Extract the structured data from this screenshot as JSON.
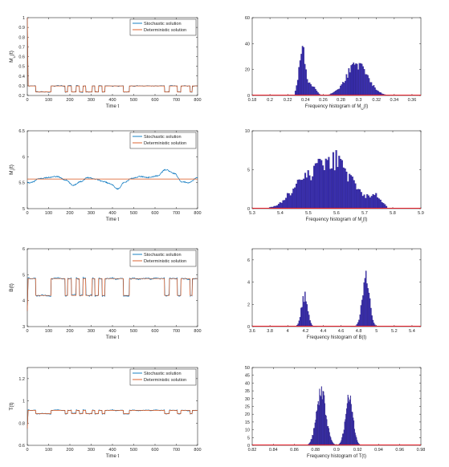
{
  "colors": {
    "stochastic": "#0072BD",
    "deterministic": "#D95319",
    "hist_fill": "#3A2FB0",
    "hist_edge": "#1A1066",
    "density": "#E8202A"
  },
  "chart_data": [
    {
      "id": "m2-time",
      "type": "line",
      "ylabel": "M_U(t)",
      "xlabel": "Time t",
      "xlim": [
        0,
        800
      ],
      "ylim": [
        0.2,
        1.0
      ],
      "xticks": [
        0,
        100,
        200,
        300,
        400,
        500,
        600,
        700,
        800
      ],
      "yticks": [
        0.2,
        0.3,
        0.4,
        0.5,
        0.6,
        0.7,
        0.8,
        0.9,
        1.0
      ],
      "ytick_labels": [
        "0.2",
        "0.3",
        "0.4",
        "0.5",
        "0.6",
        "0.7",
        "0.8",
        "0.9",
        "1"
      ],
      "legend": {
        "position": "top-right",
        "entries": [
          "Stochastic solution",
          "Deterministic solution"
        ]
      },
      "initial": 1.0,
      "levels": [
        0.236,
        0.298
      ],
      "noise": 0.004,
      "switches": [
        [
          0,
          1
        ],
        [
          40,
          0
        ],
        [
          112,
          1
        ],
        [
          178,
          0
        ],
        [
          190,
          1
        ],
        [
          208,
          0
        ],
        [
          230,
          1
        ],
        [
          245,
          0
        ],
        [
          262,
          1
        ],
        [
          275,
          0
        ],
        [
          305,
          1
        ],
        [
          318,
          0
        ],
        [
          335,
          1
        ],
        [
          352,
          0
        ],
        [
          365,
          1
        ],
        [
          452,
          0
        ],
        [
          480,
          1
        ],
        [
          645,
          0
        ],
        [
          668,
          1
        ],
        [
          705,
          0
        ],
        [
          722,
          1
        ],
        [
          765,
          0
        ],
        [
          775,
          1
        ],
        [
          800,
          1
        ]
      ],
      "series": [
        {
          "name": "Stochastic solution"
        },
        {
          "name": "Deterministic solution"
        }
      ]
    },
    {
      "id": "m2-hist",
      "type": "bar",
      "xlabel": "Frequency histogram of M_U(t)",
      "xlim": [
        0.18,
        0.37
      ],
      "ylim": [
        0,
        60
      ],
      "xticks": [
        0.18,
        0.2,
        0.22,
        0.24,
        0.26,
        0.28,
        0.3,
        0.32,
        0.34,
        0.36
      ],
      "xtick_labels": [
        "0.18",
        "0.2",
        "0.22",
        "0.24",
        "0.26",
        "0.28",
        "0.3",
        "0.32",
        "0.34",
        "0.36"
      ],
      "yticks": [
        0,
        20,
        40,
        60
      ],
      "range": [
        0.228,
        0.335
      ],
      "peaks": [
        [
          0.2365,
          0.0035,
          38
        ],
        [
          0.2475,
          0.004,
          8
        ],
        [
          0.298,
          0.012,
          24
        ]
      ],
      "spread": 0.35
    },
    {
      "id": "m1-time",
      "type": "line",
      "ylabel": "M_I(t)",
      "xlabel": "Time t",
      "xlim": [
        0,
        800
      ],
      "ylim": [
        5,
        6.5
      ],
      "xticks": [
        0,
        100,
        200,
        300,
        400,
        500,
        600,
        700,
        800
      ],
      "yticks": [
        5,
        5.5,
        6,
        6.5
      ],
      "ytick_labels": [
        "5",
        "5.5",
        "6",
        "6.5"
      ],
      "legend": {
        "position": "top-right",
        "entries": [
          "Stochastic solution",
          "Deterministic solution"
        ]
      },
      "det_value": 5.57,
      "anchors": [
        [
          0,
          5.5
        ],
        [
          15,
          5.5
        ],
        [
          60,
          5.58
        ],
        [
          100,
          5.6
        ],
        [
          140,
          5.62
        ],
        [
          180,
          5.55
        ],
        [
          215,
          5.45
        ],
        [
          250,
          5.52
        ],
        [
          285,
          5.6
        ],
        [
          320,
          5.57
        ],
        [
          360,
          5.52
        ],
        [
          390,
          5.48
        ],
        [
          425,
          5.38
        ],
        [
          455,
          5.5
        ],
        [
          490,
          5.58
        ],
        [
          530,
          5.62
        ],
        [
          570,
          5.6
        ],
        [
          610,
          5.63
        ],
        [
          650,
          5.75
        ],
        [
          690,
          5.68
        ],
        [
          725,
          5.52
        ],
        [
          760,
          5.5
        ],
        [
          800,
          5.6
        ]
      ],
      "series": [
        {
          "name": "Stochastic solution"
        },
        {
          "name": "Deterministic solution"
        }
      ]
    },
    {
      "id": "m1-hist",
      "type": "bar",
      "xlabel": "Frequency histogram of M_I(t)",
      "xlim": [
        5.3,
        5.9
      ],
      "ylim": [
        0,
        10
      ],
      "xticks": [
        5.3,
        5.4,
        5.5,
        5.6,
        5.7,
        5.8,
        5.9
      ],
      "xtick_labels": [
        "5.3",
        "5.4",
        "5.5",
        "5.6",
        "5.7",
        "5.8",
        "5.9"
      ],
      "yticks": [
        0,
        5,
        10
      ],
      "range": [
        5.36,
        5.78
      ],
      "peaks": [
        [
          5.58,
          0.07,
          6.4
        ],
        [
          5.46,
          0.04,
          1.6
        ],
        [
          5.74,
          0.02,
          1.2
        ]
      ],
      "spread": 0.45
    },
    {
      "id": "b-time",
      "type": "line",
      "ylabel": "B(t)",
      "xlabel": "Time t",
      "xlim": [
        0,
        800
      ],
      "ylim": [
        3,
        6
      ],
      "xticks": [
        0,
        100,
        200,
        300,
        400,
        500,
        600,
        700,
        800
      ],
      "yticks": [
        3,
        4,
        5,
        6
      ],
      "ytick_labels": [
        "3",
        "4",
        "5",
        "6"
      ],
      "legend": {
        "position": "top-right",
        "entries": [
          "Stochastic solution",
          "Deterministic solution"
        ]
      },
      "initial": 3.6,
      "levels": [
        4.2,
        4.85
      ],
      "noise": 0.03,
      "switches": [
        [
          0,
          1
        ],
        [
          40,
          0
        ],
        [
          112,
          1
        ],
        [
          178,
          0
        ],
        [
          190,
          1
        ],
        [
          208,
          0
        ],
        [
          230,
          1
        ],
        [
          245,
          0
        ],
        [
          262,
          1
        ],
        [
          275,
          0
        ],
        [
          305,
          1
        ],
        [
          318,
          0
        ],
        [
          335,
          1
        ],
        [
          352,
          0
        ],
        [
          365,
          1
        ],
        [
          452,
          0
        ],
        [
          480,
          1
        ],
        [
          645,
          0
        ],
        [
          668,
          1
        ],
        [
          705,
          0
        ],
        [
          722,
          1
        ],
        [
          765,
          0
        ],
        [
          775,
          1
        ],
        [
          800,
          1
        ]
      ],
      "series": [
        {
          "name": "Stochastic solution"
        },
        {
          "name": "Deterministic solution"
        }
      ]
    },
    {
      "id": "b-hist",
      "type": "bar",
      "xlabel": "Frequency histogram of B(t)",
      "xlim": [
        3.6,
        5.5
      ],
      "ylim": [
        0,
        7
      ],
      "xticks": [
        3.6,
        3.8,
        4.0,
        4.2,
        4.4,
        4.6,
        4.8,
        5.0,
        5.2,
        5.4
      ],
      "xtick_labels": [
        "3.6",
        "3.8",
        "4",
        "4.2",
        "4.4",
        "4.6",
        "4.8",
        "5",
        "5.2",
        "5.4"
      ],
      "yticks": [
        0,
        2,
        4,
        6
      ],
      "range": [
        4.1,
        5.0
      ],
      "peaks": [
        [
          4.19,
          0.035,
          2.7
        ],
        [
          4.88,
          0.04,
          4.3
        ]
      ],
      "spread": 0.35
    },
    {
      "id": "t-time",
      "type": "line",
      "ylabel": "T(t)",
      "xlabel": "Time t",
      "xlim": [
        0,
        800
      ],
      "ylim": [
        0.6,
        1.3
      ],
      "xticks": [
        0,
        100,
        200,
        300,
        400,
        500,
        600,
        700,
        800
      ],
      "yticks": [
        0.6,
        0.8,
        1.0,
        1.2
      ],
      "ytick_labels": [
        "0.6",
        "0.8",
        "1",
        "1.2"
      ],
      "legend": {
        "position": "top-right",
        "entries": [
          "Stochastic solution",
          "Deterministic solution"
        ]
      },
      "initial": 0.75,
      "levels": [
        0.885,
        0.915
      ],
      "noise": 0.004,
      "switches": [
        [
          0,
          1
        ],
        [
          40,
          0
        ],
        [
          112,
          1
        ],
        [
          178,
          0
        ],
        [
          190,
          1
        ],
        [
          208,
          0
        ],
        [
          230,
          1
        ],
        [
          245,
          0
        ],
        [
          262,
          1
        ],
        [
          275,
          0
        ],
        [
          305,
          1
        ],
        [
          318,
          0
        ],
        [
          335,
          1
        ],
        [
          352,
          0
        ],
        [
          365,
          1
        ],
        [
          452,
          0
        ],
        [
          480,
          1
        ],
        [
          645,
          0
        ],
        [
          668,
          1
        ],
        [
          705,
          0
        ],
        [
          722,
          1
        ],
        [
          765,
          0
        ],
        [
          775,
          1
        ],
        [
          800,
          1
        ]
      ],
      "series": [
        {
          "name": "Stochastic solution"
        },
        {
          "name": "Deterministic solution"
        }
      ]
    },
    {
      "id": "t-hist",
      "type": "bar",
      "xlabel": "Frequency histogram of T(t)",
      "xlim": [
        0.82,
        0.98
      ],
      "ylim": [
        0,
        50
      ],
      "xticks": [
        0.82,
        0.84,
        0.86,
        0.88,
        0.9,
        0.92,
        0.94,
        0.96,
        0.98
      ],
      "xtick_labels": [
        "0.82",
        "0.84",
        "0.86",
        "0.88",
        "0.9",
        "0.92",
        "0.94",
        "0.96",
        "0.98"
      ],
      "yticks": [
        0,
        5,
        10,
        15,
        20,
        25,
        30,
        35,
        40,
        45,
        50
      ],
      "range": [
        0.873,
        0.923
      ],
      "peaks": [
        [
          0.8855,
          0.0045,
          34
        ],
        [
          0.912,
          0.0035,
          31
        ]
      ],
      "spread": 0.3
    }
  ]
}
